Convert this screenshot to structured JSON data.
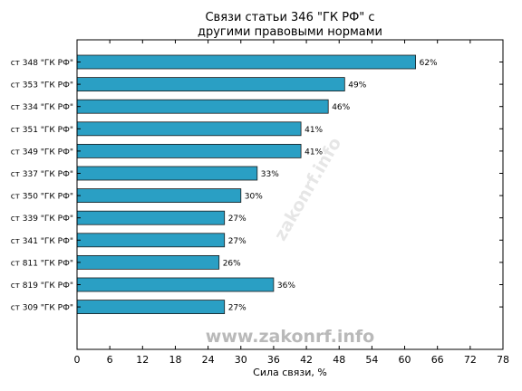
{
  "chart_data": {
    "type": "bar",
    "orientation": "horizontal",
    "title": [
      "Связи статьи 346 \"ГК РФ\" с",
      "другими правовыми нормами"
    ],
    "xlabel": "Сила связи, %",
    "ylabel": "",
    "xlim": [
      0,
      78
    ],
    "xticks": [
      0,
      6,
      12,
      18,
      24,
      30,
      36,
      42,
      48,
      54,
      60,
      66,
      72,
      78
    ],
    "grid": false,
    "bar_color": "#2a9fc4",
    "categories": [
      "ст 348 \"ГК РФ\"",
      "ст 353 \"ГК РФ\"",
      "ст 334 \"ГК РФ\"",
      "ст 351 \"ГК РФ\"",
      "ст 349 \"ГК РФ\"",
      "ст 337 \"ГК РФ\"",
      "ст 350 \"ГК РФ\"",
      "ст 339 \"ГК РФ\"",
      "ст 341 \"ГК РФ\"",
      "ст 811 \"ГК РФ\"",
      "ст 819 \"ГК РФ\"",
      "ст 309 \"ГК РФ\""
    ],
    "values": [
      62,
      49,
      46,
      41,
      41,
      33,
      30,
      27,
      27,
      26,
      36,
      27
    ],
    "value_labels": [
      "62%",
      "49%",
      "46%",
      "41%",
      "41%",
      "33%",
      "30%",
      "27%",
      "27%",
      "26%",
      "36%",
      "27%"
    ]
  },
  "watermark": {
    "main": "www.zakonrf.info",
    "diagonal": "zakonrf.info"
  }
}
